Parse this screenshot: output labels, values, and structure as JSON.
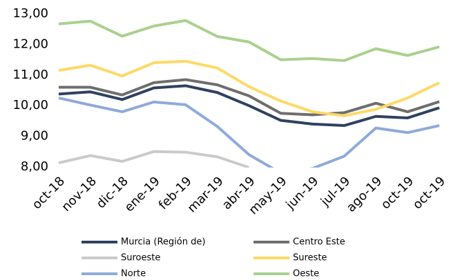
{
  "chart_data": {
    "type": "line",
    "categories": [
      "oct-18",
      "nov-18",
      "dic-18",
      "ene-19",
      "feb-19",
      "mar-19",
      "abr-19",
      "may-19",
      "jun-19",
      "jul-19",
      "ago-19",
      "oct-19",
      "oct-19"
    ],
    "ylim": [
      8,
      13
    ],
    "yticks": [
      {
        "value": 8,
        "label": "8,00"
      },
      {
        "value": 9,
        "label": "9,00"
      },
      {
        "value": 10,
        "label": "10,00"
      },
      {
        "value": 11,
        "label": "11,00"
      },
      {
        "value": 12,
        "label": "12,00"
      },
      {
        "value": 13,
        "label": "13,00"
      }
    ],
    "series": [
      {
        "name": "Murcia (Región de)",
        "color": "#2f4160",
        "values": [
          10.38,
          10.45,
          10.2,
          10.58,
          10.65,
          10.43,
          10.0,
          9.52,
          9.4,
          9.35,
          9.65,
          9.6,
          9.93
        ]
      },
      {
        "name": "Centro Este",
        "color": "#6e6e6e",
        "values": [
          10.6,
          10.6,
          10.35,
          10.75,
          10.85,
          10.68,
          10.32,
          9.75,
          9.7,
          9.77,
          10.08,
          9.8,
          10.13
        ]
      },
      {
        "name": "Suroeste",
        "color": "#cacaca",
        "values": [
          8.13,
          8.37,
          8.18,
          8.5,
          8.48,
          8.33,
          7.98,
          null,
          null,
          null,
          null,
          null,
          null
        ]
      },
      {
        "name": "Sureste",
        "color": "#ffd966",
        "values": [
          11.15,
          11.32,
          10.97,
          11.4,
          11.45,
          11.23,
          10.62,
          10.15,
          9.8,
          9.67,
          9.88,
          10.25,
          10.75
        ]
      },
      {
        "name": "Norte",
        "color": "#8eaadb",
        "values": [
          10.25,
          10.02,
          9.8,
          10.12,
          10.03,
          9.32,
          8.4,
          7.8,
          7.95,
          8.35,
          9.27,
          9.12,
          9.35
        ]
      },
      {
        "name": "Oeste",
        "color": "#a9d18e",
        "values": [
          12.67,
          12.76,
          12.27,
          12.6,
          12.78,
          12.26,
          12.08,
          11.5,
          11.54,
          11.47,
          11.86,
          11.64,
          11.92
        ]
      }
    ]
  }
}
